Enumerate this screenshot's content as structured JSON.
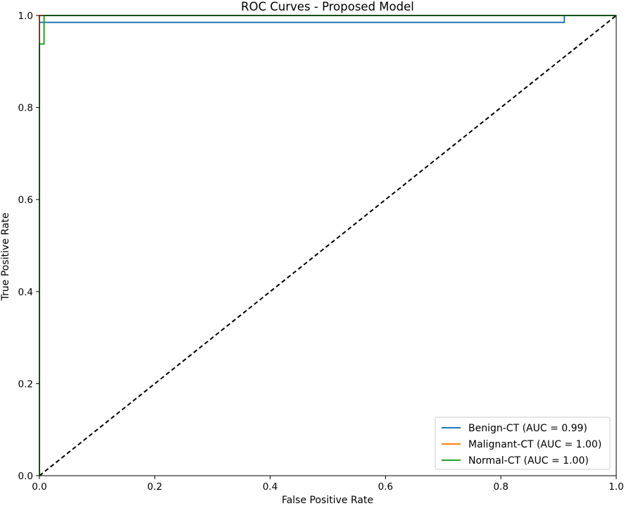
{
  "chart_data": {
    "type": "line",
    "title": "ROC Curves - Proposed Model",
    "xlabel": "False Positive Rate",
    "ylabel": "True Positive Rate",
    "xlim": [
      0.0,
      1.0
    ],
    "ylim": [
      0.0,
      1.0
    ],
    "xticks": [
      0.0,
      0.2,
      0.4,
      0.6,
      0.8,
      1.0
    ],
    "yticks": [
      0.0,
      0.2,
      0.4,
      0.6,
      0.8,
      1.0
    ],
    "xtick_labels": [
      "0.0",
      "0.2",
      "0.4",
      "0.6",
      "0.8",
      "1.0"
    ],
    "ytick_labels": [
      "0.0",
      "0.2",
      "0.4",
      "0.6",
      "0.8",
      "1.0"
    ],
    "grid": false,
    "legend_position": "lower-right",
    "series": [
      {
        "name": "Benign-CT (AUC = 0.99)",
        "color": "#1f77b4",
        "x": [
          0.0,
          0.0,
          0.008,
          0.008,
          0.91,
          0.91,
          1.0
        ],
        "y": [
          0.0,
          0.985,
          0.985,
          0.985,
          0.985,
          1.0,
          1.0
        ]
      },
      {
        "name": "Malignant-CT (AUC = 1.00)",
        "color": "#ff7f0e",
        "x": [
          0.0,
          0.0,
          1.0
        ],
        "y": [
          0.0,
          1.0,
          1.0
        ]
      },
      {
        "name": "Normal-CT (AUC = 1.00)",
        "color": "#2ca02c",
        "x": [
          0.0,
          0.0,
          0.008,
          0.008,
          1.0
        ],
        "y": [
          0.0,
          0.938,
          0.938,
          1.0,
          1.0
        ]
      }
    ],
    "reference_line": {
      "style": "dashed",
      "color": "#000000",
      "x": [
        0.0,
        1.0
      ],
      "y": [
        0.0,
        1.0
      ]
    }
  }
}
